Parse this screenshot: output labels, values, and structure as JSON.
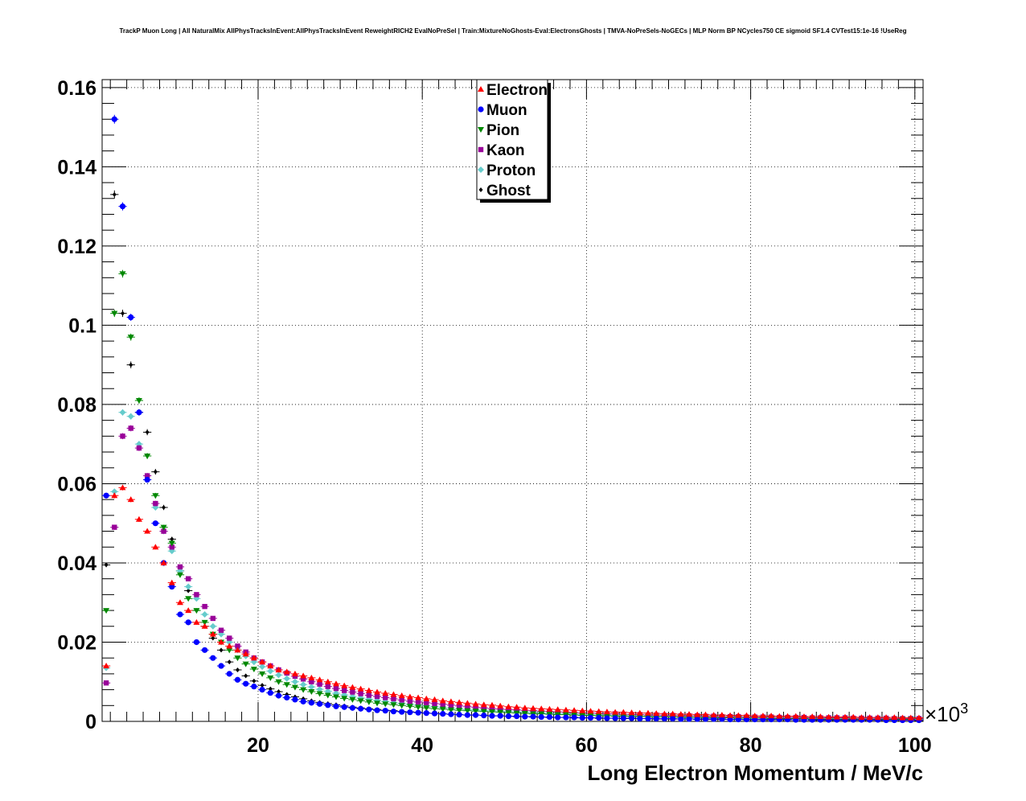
{
  "chart_data": {
    "type": "scatter",
    "title": "TrackP Muon Long | All NaturalMix AllPhysTracksInEvent:AllPhysTracksInEvent ReweightRICH2 EvalNoPreSel | Train:MixtureNoGhosts-Eval:ElectronsGhosts | TMVA-NoPreSels-NoGECs | MLP Norm BP NCycles750 CE sigmoid SF1.4 CVTest15:1e-16 !UseReg",
    "xlabel": "Long Electron Momentum / MeV/c",
    "ylabel": "",
    "x_multiplier_label": "×10",
    "x_multiplier_exp": "3",
    "xlim": [
      1,
      101
    ],
    "ylim": [
      0,
      0.162
    ],
    "x_ticks": [
      20,
      40,
      60,
      80,
      100
    ],
    "x_tick_labels": [
      "20",
      "40",
      "60",
      "80",
      "100"
    ],
    "y_ticks": [
      0,
      0.02,
      0.04,
      0.06,
      0.08,
      0.1,
      0.12,
      0.14,
      0.16
    ],
    "y_tick_labels": [
      "0",
      "0.02",
      "0.04",
      "0.06",
      "0.08",
      "0.1",
      "0.12",
      "0.14",
      "0.16"
    ],
    "grid": true,
    "legend_position": "top-center",
    "x": [
      1.5,
      2.5,
      3.5,
      4.5,
      5.5,
      6.5,
      7.5,
      8.5,
      9.5,
      10.5,
      11.5,
      12.5,
      13.5,
      14.5,
      15.5,
      16.5,
      17.5,
      18.5,
      19.5,
      20.5,
      21.5,
      22.5,
      23.5,
      24.5,
      25.5,
      26.5,
      27.5,
      28.5,
      29.5,
      30.5,
      31.5,
      32.5,
      33.5,
      34.5,
      35.5,
      36.5,
      37.5,
      38.5,
      39.5,
      40.5,
      41.5,
      42.5,
      43.5,
      44.5,
      45.5,
      46.5,
      47.5,
      48.5,
      49.5,
      50.5,
      51.5,
      52.5,
      53.5,
      54.5,
      55.5,
      56.5,
      57.5,
      58.5,
      59.5,
      60.5,
      61.5,
      62.5,
      63.5,
      64.5,
      65.5,
      66.5,
      67.5,
      68.5,
      69.5,
      70.5,
      71.5,
      72.5,
      73.5,
      74.5,
      75.5,
      76.5,
      77.5,
      78.5,
      79.5,
      80.5,
      81.5,
      82.5,
      83.5,
      84.5,
      85.5,
      86.5,
      87.5,
      88.5,
      89.5,
      90.5,
      91.5,
      92.5,
      93.5,
      94.5,
      95.5,
      96.5,
      97.5,
      98.5,
      99.5,
      100.5
    ],
    "series": [
      {
        "name": "Electron",
        "color": "#ff0000",
        "marker": "triangle-up",
        "values": [
          0.014,
          0.057,
          0.059,
          0.056,
          0.051,
          0.048,
          0.044,
          0.04,
          0.035,
          0.03,
          0.028,
          0.025,
          0.024,
          0.022,
          0.02,
          0.019,
          0.018,
          0.017,
          0.016,
          0.015,
          0.014,
          0.013,
          0.0125,
          0.012,
          0.0115,
          0.011,
          0.0105,
          0.01,
          0.0095,
          0.009,
          0.0086,
          0.0082,
          0.0078,
          0.0074,
          0.0071,
          0.0068,
          0.0065,
          0.0062,
          0.006,
          0.0057,
          0.0055,
          0.0052,
          0.005,
          0.0048,
          0.0046,
          0.0044,
          0.0042,
          0.0041,
          0.0039,
          0.0037,
          0.0036,
          0.0034,
          0.0033,
          0.0032,
          0.0031,
          0.003,
          0.0029,
          0.0028,
          0.0027,
          0.0026,
          0.0025,
          0.0024,
          0.0023,
          0.0023,
          0.0022,
          0.0021,
          0.0021,
          0.002,
          0.0019,
          0.0019,
          0.0018,
          0.0018,
          0.0017,
          0.0017,
          0.0016,
          0.0016,
          0.0015,
          0.0015,
          0.0015,
          0.0014,
          0.0014,
          0.0014,
          0.0013,
          0.0013,
          0.0013,
          0.0012,
          0.0012,
          0.0012,
          0.0011,
          0.0011,
          0.0011,
          0.0011,
          0.001,
          0.001,
          0.001,
          0.001,
          0.001,
          0.0009,
          0.0009,
          0.0009
        ]
      },
      {
        "name": "Muon",
        "color": "#0000ff",
        "marker": "circle",
        "values": [
          0.057,
          0.152,
          0.13,
          0.102,
          0.078,
          0.061,
          0.05,
          0.04,
          0.034,
          0.027,
          0.025,
          0.02,
          0.018,
          0.016,
          0.014,
          0.012,
          0.0105,
          0.0095,
          0.0088,
          0.008,
          0.0072,
          0.0065,
          0.006,
          0.0055,
          0.005,
          0.0047,
          0.0044,
          0.0041,
          0.0038,
          0.0036,
          0.0034,
          0.0032,
          0.003,
          0.0028,
          0.0027,
          0.0025,
          0.0024,
          0.0023,
          0.0022,
          0.0021,
          0.002,
          0.0019,
          0.0018,
          0.0017,
          0.0016,
          0.0016,
          0.0015,
          0.0014,
          0.0014,
          0.0013,
          0.0013,
          0.0012,
          0.0012,
          0.0011,
          0.0011,
          0.001,
          0.001,
          0.001,
          0.0009,
          0.0009,
          0.0009,
          0.0008,
          0.0008,
          0.0008,
          0.0008,
          0.0007,
          0.0007,
          0.0007,
          0.0007,
          0.0007,
          0.0006,
          0.0006,
          0.0006,
          0.0006,
          0.0006,
          0.0006,
          0.0005,
          0.0005,
          0.0005,
          0.0005,
          0.0005,
          0.0005,
          0.0005,
          0.0005,
          0.0004,
          0.0004,
          0.0004,
          0.0004,
          0.0004,
          0.0004,
          0.0004,
          0.0004,
          0.0004,
          0.0004,
          0.0004,
          0.0003,
          0.0003,
          0.0003,
          0.0003,
          0.0003
        ]
      },
      {
        "name": "Pion",
        "color": "#008800",
        "marker": "triangle-down",
        "values": [
          0.028,
          0.103,
          0.113,
          0.097,
          0.081,
          0.067,
          0.057,
          0.049,
          0.045,
          0.037,
          0.031,
          0.028,
          0.025,
          0.022,
          0.02,
          0.018,
          0.016,
          0.0145,
          0.0132,
          0.012,
          0.011,
          0.01,
          0.0093,
          0.0086,
          0.008,
          0.0075,
          0.007,
          0.0066,
          0.0062,
          0.0058,
          0.0055,
          0.0052,
          0.0049,
          0.0046,
          0.0044,
          0.0042,
          0.004,
          0.0038,
          0.0036,
          0.0034,
          0.0032,
          0.0031,
          0.0029,
          0.0028,
          0.0027,
          0.0026,
          0.0025,
          0.0024,
          0.0023,
          0.0022,
          0.0021,
          0.002,
          0.0019,
          0.0019,
          0.0018,
          0.0017,
          0.0017,
          0.0016,
          0.0015,
          0.0015,
          0.0014,
          0.0014,
          0.0013,
          0.0013,
          0.0012,
          0.0012,
          0.0012,
          0.0011,
          0.0011,
          0.0011,
          0.001,
          0.001,
          0.001,
          0.0009,
          0.0009,
          0.0009,
          0.0009,
          0.0008,
          0.0008,
          0.0008,
          0.0008,
          0.0007,
          0.0007,
          0.0007,
          0.0007,
          0.0007,
          0.0006,
          0.0006,
          0.0006,
          0.0006,
          0.0006,
          0.0006,
          0.0005,
          0.0005,
          0.0005,
          0.0005,
          0.0005,
          0.0005,
          0.0005,
          0.0004
        ]
      },
      {
        "name": "Kaon",
        "color": "#990099",
        "marker": "square",
        "values": [
          0.0097,
          0.049,
          0.072,
          0.074,
          0.069,
          0.062,
          0.055,
          0.048,
          0.044,
          0.039,
          0.036,
          0.032,
          0.029,
          0.026,
          0.023,
          0.021,
          0.019,
          0.0175,
          0.016,
          0.015,
          0.014,
          0.013,
          0.0122,
          0.0114,
          0.0107,
          0.01,
          0.0094,
          0.0088,
          0.0083,
          0.0078,
          0.0074,
          0.007,
          0.0066,
          0.0063,
          0.006,
          0.0057,
          0.0054,
          0.0051,
          0.0049,
          0.0047,
          0.0045,
          0.0043,
          0.0041,
          0.0039,
          0.0037,
          0.0035,
          0.0034,
          0.0032,
          0.0031,
          0.003,
          0.0029,
          0.0028,
          0.0027,
          0.0026,
          0.0025,
          0.0024,
          0.0023,
          0.0022,
          0.0021,
          0.0021,
          0.002,
          0.0019,
          0.0019,
          0.0018,
          0.0017,
          0.0017,
          0.0016,
          0.0016,
          0.0015,
          0.0015,
          0.0014,
          0.0014,
          0.0014,
          0.0013,
          0.0013,
          0.0012,
          0.0012,
          0.0012,
          0.0011,
          0.0011,
          0.0011,
          0.0011,
          0.001,
          0.001,
          0.001,
          0.001,
          0.0009,
          0.0009,
          0.0009,
          0.0009,
          0.0009,
          0.0008,
          0.0008,
          0.0008,
          0.0008,
          0.0008,
          0.0007,
          0.0007,
          0.0007,
          0.0007
        ]
      },
      {
        "name": "Proton",
        "color": "#66cccc",
        "marker": "diamond",
        "values": [
          0.0135,
          0.058,
          0.078,
          0.077,
          0.07,
          0.061,
          0.054,
          0.048,
          0.043,
          0.038,
          0.034,
          0.031,
          0.027,
          0.024,
          0.022,
          0.02,
          0.018,
          0.0165,
          0.015,
          0.0138,
          0.0127,
          0.0117,
          0.0108,
          0.01,
          0.0093,
          0.0087,
          0.0081,
          0.0076,
          0.0071,
          0.0067,
          0.0063,
          0.0059,
          0.0056,
          0.0053,
          0.005,
          0.0047,
          0.0045,
          0.0043,
          0.0041,
          0.0039,
          0.0037,
          0.0035,
          0.0033,
          0.0032,
          0.003,
          0.0029,
          0.0028,
          0.0027,
          0.0026,
          0.0025,
          0.0024,
          0.0023,
          0.0022,
          0.0021,
          0.002,
          0.0019,
          0.0019,
          0.0018,
          0.0017,
          0.0017,
          0.0016,
          0.0016,
          0.0015,
          0.0015,
          0.0014,
          0.0014,
          0.0013,
          0.0013,
          0.0013,
          0.0012,
          0.0012,
          0.0011,
          0.0011,
          0.0011,
          0.0011,
          0.001,
          0.001,
          0.001,
          0.001,
          0.0009,
          0.0009,
          0.0009,
          0.0009,
          0.0008,
          0.0008,
          0.0008,
          0.0008,
          0.0008,
          0.0007,
          0.0007,
          0.0007,
          0.0007,
          0.0007,
          0.0007,
          0.0006,
          0.0006,
          0.0006,
          0.0006,
          0.0006,
          0.0006
        ]
      },
      {
        "name": "Ghost",
        "color": "#000000",
        "marker": "small-diamond",
        "values": [
          0.0395,
          0.133,
          0.103,
          0.09,
          0.078,
          0.073,
          0.063,
          0.054,
          0.046,
          0.038,
          0.033,
          0.028,
          0.024,
          0.021,
          0.018,
          0.015,
          0.013,
          0.0115,
          0.0102,
          0.0091,
          0.0082,
          0.0075,
          0.0068,
          0.0062,
          0.0057,
          0.0052,
          0.0048,
          0.0045,
          0.0042,
          0.0039,
          0.0036,
          0.0034,
          0.0032,
          0.003,
          0.0028,
          0.0027,
          0.0025,
          0.0024,
          0.0023,
          0.0021,
          0.002,
          0.0019,
          0.0018,
          0.0017,
          0.0016,
          0.0016,
          0.0015,
          0.0014,
          0.0014,
          0.0013,
          0.0012,
          0.0012,
          0.0011,
          0.0011,
          0.001,
          0.001,
          0.001,
          0.0009,
          0.0009,
          0.0009,
          0.0008,
          0.0008,
          0.0008,
          0.0007,
          0.0007,
          0.0007,
          0.0007,
          0.0006,
          0.0006,
          0.0006,
          0.0006,
          0.0006,
          0.0005,
          0.0005,
          0.0005,
          0.0005,
          0.0005,
          0.0005,
          0.0004,
          0.0004,
          0.0004,
          0.0004,
          0.0004,
          0.0004,
          0.0004,
          0.0004,
          0.0003,
          0.0003,
          0.0003,
          0.0003,
          0.0003,
          0.0003,
          0.0003,
          0.0003,
          0.0003,
          0.0003,
          0.0003,
          0.0003,
          0.0003,
          0.0002
        ]
      }
    ]
  }
}
